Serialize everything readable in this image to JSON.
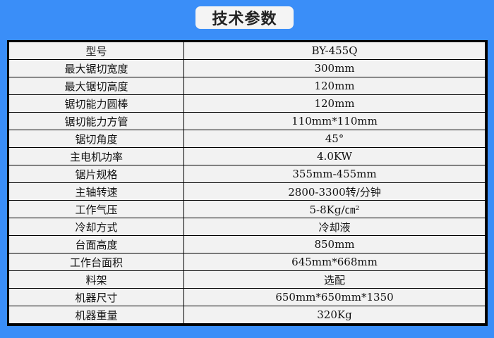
{
  "title": "技术参数",
  "colors": {
    "background": "#3a8ef8",
    "table_bg": "#f2f2f2",
    "border": "#000000"
  },
  "specs": [
    {
      "label": "型号",
      "value": "BY-455Q"
    },
    {
      "label": "最大锯切宽度",
      "value": "300mm"
    },
    {
      "label": "最大锯切高度",
      "value": "120mm"
    },
    {
      "label": "锯切能力圆棒",
      "value": "120mm"
    },
    {
      "label": "锯切能力方管",
      "value": "110mm*110mm"
    },
    {
      "label": "锯切角度",
      "value": "45°"
    },
    {
      "label": "主电机功率",
      "value": "4.0KW"
    },
    {
      "label": "锯片规格",
      "value": "355mm-455mm"
    },
    {
      "label": "主轴转速",
      "value": "2800-3300转/分钟"
    },
    {
      "label": "工作气压",
      "value": "5-8Kg/㎝²"
    },
    {
      "label": "冷却方式",
      "value": "冷却液"
    },
    {
      "label": "台面高度",
      "value": "850mm"
    },
    {
      "label": "工作台面积",
      "value": "645mm*668mm"
    },
    {
      "label": "料架",
      "value": "选配"
    },
    {
      "label": "机器尺寸",
      "value": "650mm*650mm*1350"
    },
    {
      "label": "机器重量",
      "value": "320Kg"
    }
  ]
}
